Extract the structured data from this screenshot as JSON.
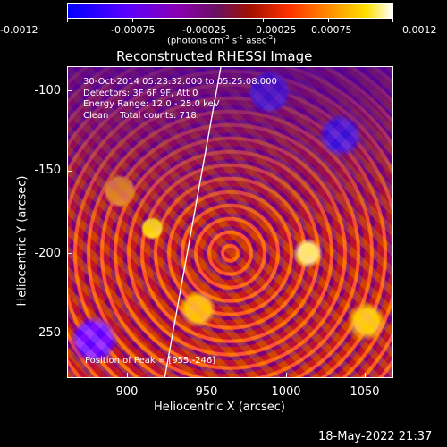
{
  "colorbar": {
    "tick_labels": [
      "-0.0012",
      "-0.00075",
      "-0.00025",
      "0.00025",
      "0.00075",
      "0.0012"
    ],
    "units_prefix": "(photons cm",
    "units_sup1": "-2",
    "units_mid1": " s",
    "units_sup2": "-1",
    "units_mid2": " asec",
    "units_sup3": "-2",
    "units_suffix": ")"
  },
  "plot": {
    "title": "Reconstructed RHESSI Image",
    "info_lines": [
      "30-Oct-2014 05:23:32.000 to 05:25:08.000",
      "Detectors: 3F 6F 9F, Att 0",
      "Energy Range: 12.0 - 25.0 keV",
      "Clean    Total counts: 718."
    ],
    "peak_label": "Position of Peak = [955,-246]",
    "xlabel": "Heliocentric X (arcsec)",
    "ylabel": "Heliocentric Y (arcsec)",
    "x_ticks": [
      "900",
      "950",
      "1000",
      "1050"
    ],
    "y_ticks": [
      "-100",
      "-150",
      "-200",
      "-250"
    ],
    "colors": {
      "background": "#000000",
      "low": "#0000ff",
      "mid": "#b01000",
      "high": "#ffffff"
    }
  },
  "footer": {
    "timestamp": "18-May-2022 21:37"
  }
}
